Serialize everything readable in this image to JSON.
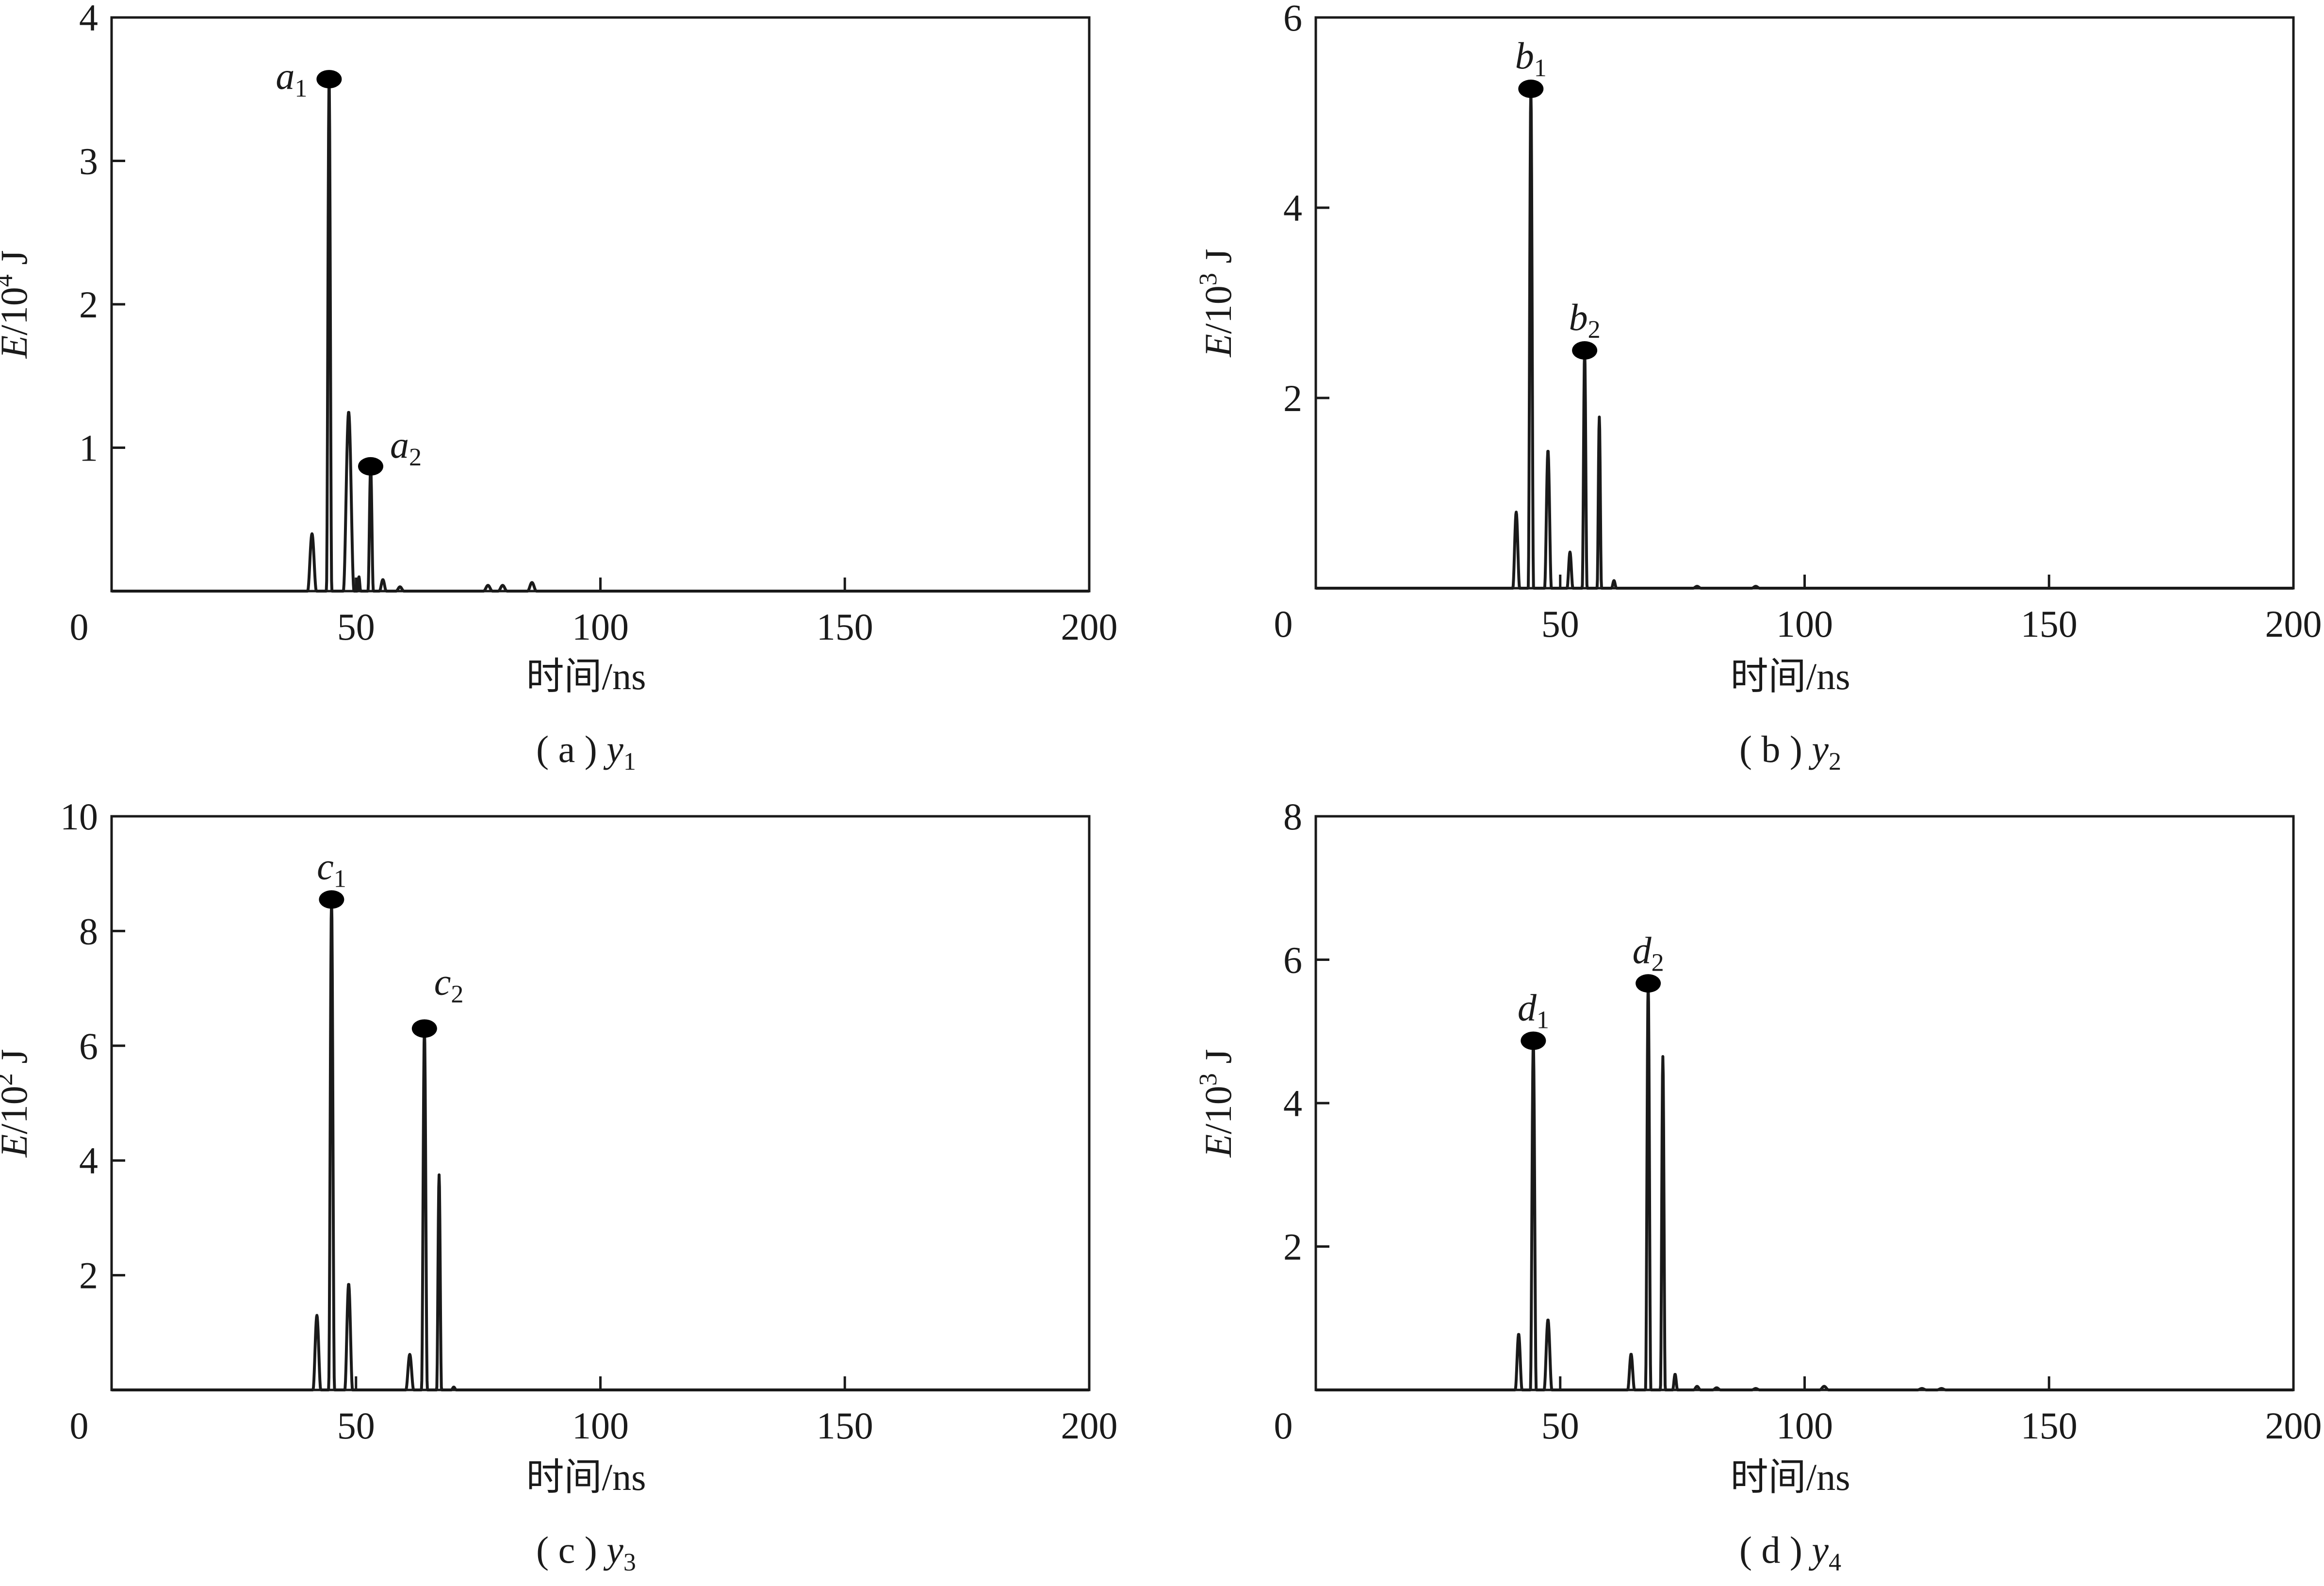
{
  "chart_data": [
    {
      "type": "line",
      "caption": "( a ) y1",
      "caption_var": "y",
      "caption_sub": "1",
      "xlabel": "时间/ns",
      "ylabel": "E/10⁴ J",
      "ylabel_var": "E",
      "ylabel_rest": "/10",
      "ylabel_exp": "4",
      "ylabel_unit": " J",
      "xlim": [
        0,
        200
      ],
      "ylim": [
        0,
        4
      ],
      "xticks": [
        0,
        50,
        100,
        150,
        200
      ],
      "yticks": [
        0,
        1,
        2,
        3,
        4
      ],
      "pulses": [
        {
          "t": 41,
          "a": 0.4,
          "w": 0.9
        },
        {
          "t": 44.5,
          "a": 3.57,
          "w": 0.55
        },
        {
          "t": 48.5,
          "a": 1.25,
          "w": 1.1
        },
        {
          "t": 50.6,
          "a": 0.1,
          "w": 0.35
        },
        {
          "t": 53,
          "a": 0.87,
          "w": 0.55
        },
        {
          "t": 55.5,
          "a": 0.08,
          "w": 0.7
        },
        {
          "t": 59,
          "a": 0.03,
          "w": 0.8
        },
        {
          "t": 77,
          "a": 0.04,
          "w": 0.9
        },
        {
          "t": 80,
          "a": 0.04,
          "w": 0.9
        },
        {
          "t": 86,
          "a": 0.06,
          "w": 0.9
        }
      ],
      "peaks": [
        {
          "label": "a",
          "sub": "1",
          "x": 44.5,
          "y": 3.57,
          "side": "left"
        },
        {
          "label": "a",
          "sub": "2",
          "x": 53,
          "y": 0.87,
          "side": "right"
        }
      ]
    },
    {
      "type": "line",
      "caption": "( b ) y2",
      "caption_var": "y",
      "caption_sub": "2",
      "xlabel": "时间/ns",
      "ylabel": "E/10³ J",
      "ylabel_var": "E",
      "ylabel_rest": "/10",
      "ylabel_exp": "3",
      "ylabel_unit": " J",
      "xlim": [
        0,
        200
      ],
      "ylim": [
        0,
        6
      ],
      "xticks": [
        0,
        50,
        100,
        150,
        200
      ],
      "yticks": [
        0,
        2,
        4,
        6
      ],
      "pulses": [
        {
          "t": 41,
          "a": 0.8,
          "w": 0.7
        },
        {
          "t": 44,
          "a": 5.25,
          "w": 0.55
        },
        {
          "t": 47.5,
          "a": 1.45,
          "w": 0.7
        },
        {
          "t": 52,
          "a": 0.38,
          "w": 0.6
        },
        {
          "t": 55,
          "a": 2.5,
          "w": 0.5
        },
        {
          "t": 58,
          "a": 1.8,
          "w": 0.45
        },
        {
          "t": 61,
          "a": 0.08,
          "w": 0.5
        },
        {
          "t": 78,
          "a": 0.02,
          "w": 0.8
        },
        {
          "t": 90,
          "a": 0.02,
          "w": 0.8
        }
      ],
      "peaks": [
        {
          "label": "b",
          "sub": "1",
          "x": 44,
          "y": 5.25,
          "side": "top"
        },
        {
          "label": "b",
          "sub": "2",
          "x": 55,
          "y": 2.5,
          "side": "top"
        }
      ]
    },
    {
      "type": "line",
      "caption": "( c ) y3",
      "caption_var": "y",
      "caption_sub": "3",
      "xlabel": "时间/ns",
      "ylabel": "E/10² J",
      "ylabel_var": "E",
      "ylabel_rest": "/10",
      "ylabel_exp": "2",
      "ylabel_unit": " J",
      "xlim": [
        0,
        200
      ],
      "ylim": [
        0,
        10
      ],
      "xticks": [
        0,
        50,
        100,
        150,
        200
      ],
      "yticks": [
        0,
        2,
        4,
        6,
        8,
        10
      ],
      "pulses": [
        {
          "t": 42,
          "a": 1.3,
          "w": 0.8
        },
        {
          "t": 45,
          "a": 8.55,
          "w": 0.6
        },
        {
          "t": 48.5,
          "a": 1.85,
          "w": 0.8
        },
        {
          "t": 61,
          "a": 0.62,
          "w": 0.8
        },
        {
          "t": 64,
          "a": 6.3,
          "w": 0.6
        },
        {
          "t": 67,
          "a": 3.75,
          "w": 0.5
        },
        {
          "t": 70,
          "a": 0.05,
          "w": 0.5
        }
      ],
      "peaks": [
        {
          "label": "c",
          "sub": "1",
          "x": 45,
          "y": 8.55,
          "side": "top"
        },
        {
          "label": "c",
          "sub": "2",
          "x": 64,
          "y": 6.3,
          "side": "topright"
        }
      ]
    },
    {
      "type": "line",
      "caption": "( d ) y4",
      "caption_var": "y",
      "caption_sub": "4",
      "xlabel": "时间/ns",
      "ylabel": "E/10³ J",
      "ylabel_var": "E",
      "ylabel_rest": "/10",
      "ylabel_exp": "3",
      "ylabel_unit": " J",
      "xlim": [
        0,
        200
      ],
      "ylim": [
        0,
        8
      ],
      "xticks": [
        0,
        50,
        100,
        150,
        200
      ],
      "yticks": [
        0,
        2,
        4,
        6,
        8
      ],
      "pulses": [
        {
          "t": 41.5,
          "a": 0.78,
          "w": 0.7
        },
        {
          "t": 44.5,
          "a": 4.87,
          "w": 0.6
        },
        {
          "t": 47.5,
          "a": 0.98,
          "w": 0.8
        },
        {
          "t": 64.5,
          "a": 0.5,
          "w": 0.7
        },
        {
          "t": 68,
          "a": 5.67,
          "w": 0.55
        },
        {
          "t": 71,
          "a": 4.65,
          "w": 0.5
        },
        {
          "t": 73.5,
          "a": 0.22,
          "w": 0.5
        },
        {
          "t": 78,
          "a": 0.05,
          "w": 0.7
        },
        {
          "t": 82,
          "a": 0.03,
          "w": 0.8
        },
        {
          "t": 90,
          "a": 0.02,
          "w": 0.8
        },
        {
          "t": 104,
          "a": 0.05,
          "w": 0.9
        },
        {
          "t": 124,
          "a": 0.02,
          "w": 0.9
        },
        {
          "t": 128,
          "a": 0.02,
          "w": 0.9
        }
      ],
      "peaks": [
        {
          "label": "d",
          "sub": "1",
          "x": 44.5,
          "y": 4.87,
          "side": "top"
        },
        {
          "label": "d",
          "sub": "2",
          "x": 68,
          "y": 5.67,
          "side": "top"
        }
      ]
    }
  ]
}
